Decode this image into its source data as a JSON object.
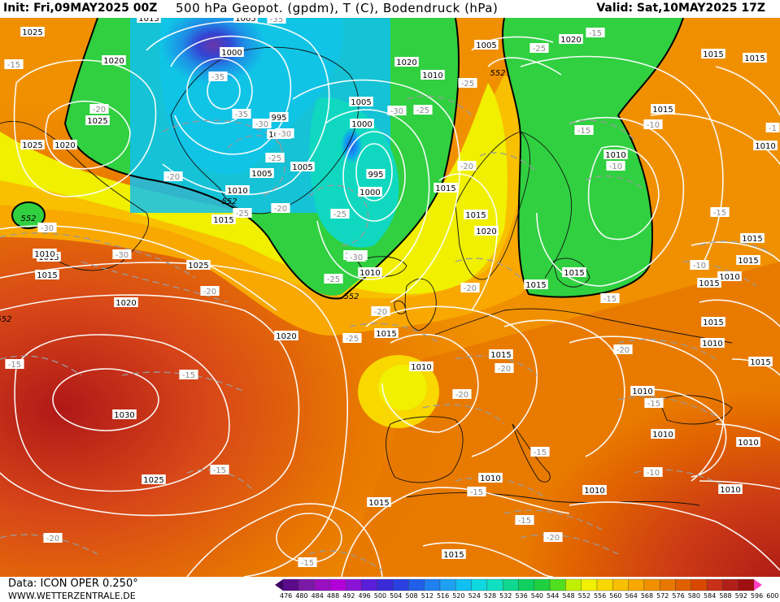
{
  "header": {
    "init": "Init: Fri,09MAY2025 00Z",
    "title": "500 hPa Geopot. (gpdm), T (C), Bodendruck (hPa)",
    "valid": "Valid: Sat,10MAY2025 17Z"
  },
  "footer": {
    "source": "Data: ICON OPER 0.250°",
    "site": "WWW.WETTERZENTRALE.DE"
  },
  "legend": {
    "values": [
      "476",
      "480",
      "484",
      "488",
      "492",
      "496",
      "500",
      "504",
      "508",
      "512",
      "516",
      "520",
      "524",
      "528",
      "532",
      "536",
      "540",
      "544",
      "548",
      "552",
      "556",
      "560",
      "564",
      "568",
      "572",
      "576",
      "580",
      "584",
      "588",
      "592",
      "596",
      "600"
    ],
    "colors": [
      "#3d0066",
      "#5a0a8a",
      "#7a1aa6",
      "#9a10c0",
      "#b400d8",
      "#8a14d6",
      "#5a1ed8",
      "#3a2ad8",
      "#2a40e0",
      "#2060e8",
      "#2080f0",
      "#20a0f0",
      "#10c0f0",
      "#10d8e0",
      "#10e0c0",
      "#10d890",
      "#10d060",
      "#20d040",
      "#50e020",
      "#c0f000",
      "#f0f000",
      "#f8d800",
      "#f8c000",
      "#f8a800",
      "#f09000",
      "#e87800",
      "#e06000",
      "#d84800",
      "#c83018",
      "#b02018",
      "#a01010",
      "#ff40c0"
    ]
  },
  "map": {
    "pressure_labels": [
      "1015",
      "1005",
      "1025",
      "1020",
      "1000",
      "1025",
      "1020",
      "1025",
      "1010",
      "1015",
      "1015",
      "1015",
      "1020",
      "1005",
      "995",
      "1000",
      "1005",
      "1005",
      "1000",
      "1010",
      "1005",
      "995",
      "1000",
      "1015",
      "1015",
      "1020",
      "1010",
      "1005",
      "1010",
      "1025",
      "1020",
      "1010",
      "1030",
      "1025",
      "1015",
      "1015",
      "1015",
      "1010",
      "1015",
      "1015",
      "1020",
      "1015",
      "1015",
      "1010",
      "1010",
      "1010",
      "1010",
      "1015",
      "1010",
      "1015",
      "1015",
      "1015",
      "1010",
      "1010",
      "1010",
      "1015",
      "1010",
      "1015",
      "1015",
      "1020"
    ],
    "temperature_labels": [
      "-35",
      "-30",
      "-35",
      "-35",
      "-30",
      "-25",
      "-25",
      "-30",
      "-20",
      "-25",
      "-20",
      "-25",
      "-30",
      "-30",
      "-20",
      "-25",
      "-15",
      "-30",
      "-25",
      "-20",
      "-25",
      "-15",
      "-15",
      "-20",
      "-20",
      "-20",
      "-20",
      "-15",
      "-15",
      "-10",
      "-15",
      "-20",
      "-15",
      "-20",
      "-15",
      "-20",
      "-15",
      "-10",
      "-15",
      "-10",
      "-15",
      "-10",
      "-15",
      "-25",
      "-15",
      "-20",
      "-1"
    ],
    "geopotential_labels": [
      "552",
      "552",
      "552",
      "552",
      "552"
    ]
  }
}
